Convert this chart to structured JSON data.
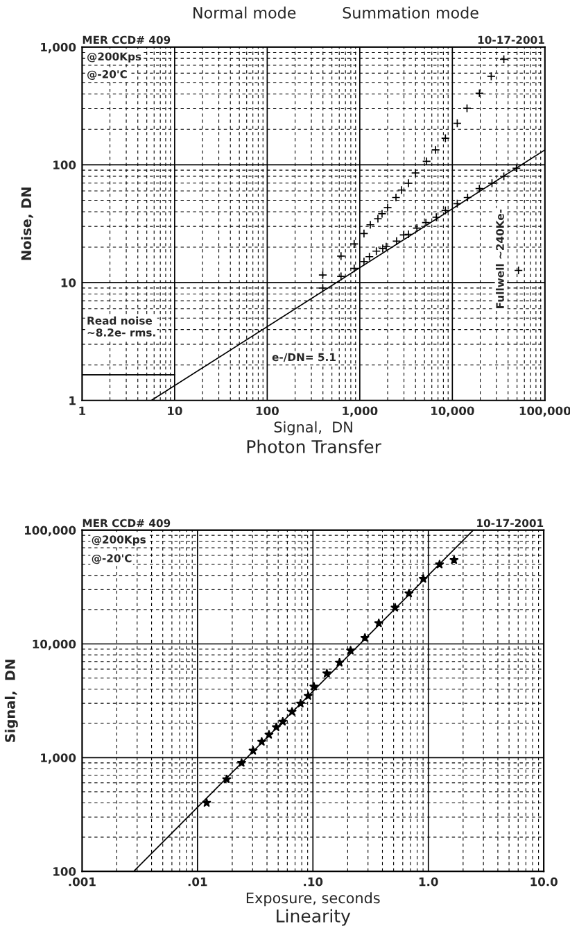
{
  "chart_data": [
    {
      "type": "scatter",
      "title": "Photon Transfer",
      "xlabel": "Signal,  DN",
      "ylabel": "Noise, DN",
      "log": "xy",
      "grid": true,
      "marker": "cross",
      "annotations": [
        "Normal mode",
        "Summation mode",
        "MER CCD# 409",
        "10-17-2001",
        "@200Kps",
        "@-20'C",
        "Read noise\n~8.2e- rms.",
        "e-/DN= 5.1",
        "Fullwell ~240Ke-"
      ],
      "xlim": [
        1,
        100000
      ],
      "ylim": [
        1,
        1000
      ],
      "xticks": [
        1,
        10,
        100,
        {
          "value": 1000,
          "label": "1,000"
        },
        {
          "value": 10000,
          "label": "10,000"
        },
        {
          "value": 100000,
          "label": "100,000"
        }
      ],
      "yticks": [
        1,
        10,
        100,
        {
          "value": 1000,
          "label": "1,000"
        }
      ],
      "series": [
        {
          "color": "#000000",
          "x": [
            398,
            627,
            870,
            1110,
            1270,
            1510,
            1770,
            1930,
            2500,
            2980,
            3360,
            4140,
            5180,
            6710,
            8410,
            11300,
            14600,
            19600,
            26800,
            36000,
            49200,
            51800
          ],
          "values": [
            9.0,
            11.3,
            13.2,
            15.1,
            16.6,
            18.5,
            19.5,
            20.2,
            22.5,
            25.4,
            25.7,
            29.0,
            32.3,
            35.9,
            41.0,
            46.8,
            52.8,
            62.8,
            69.8,
            79.8,
            93.5,
            12.7
          ]
        },
        {
          "color": "#000000",
          "x": [
            398,
            627,
            870,
            1110,
            1300,
            1570,
            1740,
            2000,
            2460,
            2830,
            3360,
            4000,
            5270,
            6590,
            8410,
            11300,
            14400,
            19600,
            26300,
            36000
          ],
          "values": [
            11.6,
            16.8,
            21.3,
            26.1,
            31.0,
            34.9,
            38.4,
            43.3,
            52.8,
            61.1,
            69.8,
            85.3,
            107,
            134,
            168,
            225,
            302,
            405,
            564,
            787
          ]
        },
        {
          "type": "line",
          "marker": "none",
          "color": "#000000",
          "x": [
            5.6,
            100000
          ],
          "values": [
            1,
            134
          ]
        },
        {
          "type": "line",
          "marker": "none",
          "color": "#000000",
          "x": [
            1,
            10
          ],
          "values": [
            1.65,
            1.65
          ]
        }
      ]
    },
    {
      "type": "scatter",
      "title": "Linearity",
      "xlabel": "Exposure, seconds",
      "ylabel": "Signal,  DN",
      "log": "xy",
      "grid": true,
      "marker": "star",
      "annotations": [
        "MER CCD# 409",
        "10-17-2001",
        "@200Kps",
        "@-20'C"
      ],
      "xlim": [
        0.001,
        10
      ],
      "ylim": [
        100,
        100000
      ],
      "xticks": [
        {
          "value": 0.001,
          "label": ".001"
        },
        {
          "value": 0.01,
          "label": ".01"
        },
        {
          "value": 0.1,
          "label": ".10"
        },
        {
          "value": 1,
          "label": "1.0"
        },
        {
          "value": 10,
          "label": "10.0"
        }
      ],
      "yticks": [
        100,
        {
          "value": 1000,
          "label": "1,000"
        },
        {
          "value": 10000,
          "label": "10,000"
        },
        {
          "value": 100000,
          "label": "100,000"
        }
      ],
      "series": [
        {
          "color": "#000000",
          "x": [
            0.012,
            0.0179,
            0.0241,
            0.0303,
            0.036,
            0.0416,
            0.0482,
            0.0548,
            0.0659,
            0.0782,
            0.091,
            0.102,
            0.132,
            0.17,
            0.212,
            0.282,
            0.372,
            0.515,
            0.679,
            0.904,
            1.25,
            1.67
          ],
          "values": [
            400,
            645,
            900,
            1150,
            1380,
            1590,
            1850,
            2070,
            2530,
            2990,
            3490,
            4210,
            5500,
            6850,
            8750,
            11300,
            15200,
            20800,
            27800,
            37300,
            49900,
            54600
          ]
        },
        {
          "type": "line",
          "marker": "none",
          "color": "#000000",
          "x": [
            0.0028,
            2.45
          ],
          "values": [
            100,
            100000
          ]
        }
      ]
    }
  ]
}
